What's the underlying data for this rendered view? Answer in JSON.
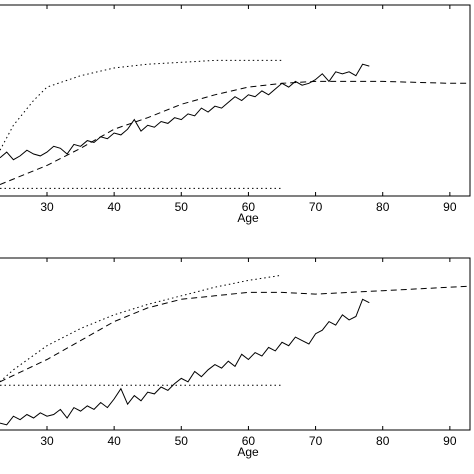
{
  "chart_data": [
    {
      "type": "line",
      "xlabel": "Age",
      "xlim": [
        23,
        93
      ],
      "xticks": [
        30,
        40,
        50,
        60,
        70,
        80,
        90
      ],
      "ylim": [
        0,
        100
      ],
      "series": [
        {
          "color": "#000",
          "linestyle": "dotted",
          "x": [
            23,
            25,
            28,
            30,
            35,
            40,
            45,
            50,
            55,
            60,
            65
          ],
          "values": [
            24,
            37,
            50,
            57,
            63,
            67,
            69,
            70,
            71,
            71,
            71
          ]
        },
        {
          "color": "#000",
          "linestyle": "dashed",
          "x": [
            23,
            30,
            35,
            40,
            45,
            50,
            55,
            60,
            65,
            70,
            80,
            90,
            95
          ],
          "values": [
            6,
            16,
            25,
            35,
            41,
            48,
            53,
            57,
            59,
            60,
            60,
            59,
            59
          ]
        },
        {
          "color": "#000",
          "linestyle": "dotted",
          "x": [
            23,
            65
          ],
          "values": [
            4,
            4
          ]
        },
        {
          "color": "#000",
          "linestyle": "solid",
          "x": [
            23,
            24,
            25,
            26,
            27,
            28,
            29,
            30,
            31,
            32,
            33,
            34,
            35,
            36,
            37,
            38,
            39,
            40,
            41,
            42,
            43,
            44,
            45,
            46,
            47,
            48,
            49,
            50,
            51,
            52,
            53,
            54,
            55,
            56,
            57,
            58,
            59,
            60,
            61,
            62,
            63,
            64,
            65,
            66,
            67,
            68,
            69,
            70,
            71,
            72,
            73,
            74,
            75,
            76,
            77,
            78
          ],
          "values": [
            20,
            23,
            19,
            21,
            24,
            22,
            21,
            23,
            26,
            25,
            22,
            27,
            26,
            29,
            28,
            31,
            30,
            33,
            32,
            35,
            40,
            34,
            37,
            36,
            39,
            38,
            41,
            40,
            43,
            42,
            46,
            44,
            47,
            46,
            49,
            52,
            50,
            53,
            52,
            55,
            53,
            56,
            59,
            57,
            60,
            58,
            59,
            61,
            64,
            60,
            65,
            64,
            65,
            63,
            69,
            68
          ]
        }
      ]
    },
    {
      "type": "line",
      "xlabel": "Age",
      "xlim": [
        23,
        93
      ],
      "xticks": [
        30,
        40,
        50,
        60,
        70,
        80,
        90
      ],
      "ylim": [
        0,
        100
      ],
      "series": [
        {
          "color": "#000",
          "linestyle": "dotted",
          "x": [
            23,
            25,
            30,
            35,
            40,
            45,
            50,
            55,
            60,
            65
          ],
          "values": [
            28,
            35,
            49,
            59,
            67,
            73,
            78,
            83,
            87,
            90
          ]
        },
        {
          "color": "#000",
          "linestyle": "dashed",
          "x": [
            23,
            30,
            35,
            40,
            45,
            50,
            55,
            60,
            65,
            70,
            80,
            90,
            95
          ],
          "values": [
            28,
            41,
            52,
            63,
            71,
            76,
            78,
            80,
            80,
            79,
            81,
            83,
            84
          ]
        },
        {
          "color": "#000",
          "linestyle": "dotted",
          "x": [
            23,
            65
          ],
          "values": [
            26,
            26
          ]
        },
        {
          "color": "#000",
          "linestyle": "solid",
          "x": [
            23,
            24,
            25,
            26,
            27,
            28,
            29,
            30,
            31,
            32,
            33,
            34,
            35,
            36,
            37,
            38,
            39,
            40,
            41,
            42,
            43,
            44,
            45,
            46,
            47,
            48,
            49,
            50,
            51,
            52,
            53,
            54,
            55,
            56,
            57,
            58,
            59,
            60,
            61,
            62,
            63,
            64,
            65,
            66,
            67,
            68,
            69,
            70,
            71,
            72,
            73,
            74,
            75,
            76,
            77,
            78
          ],
          "values": [
            4,
            3,
            8,
            6,
            9,
            7,
            10,
            8,
            9,
            12,
            7,
            13,
            11,
            14,
            12,
            16,
            13,
            18,
            24,
            15,
            20,
            17,
            22,
            21,
            25,
            23,
            27,
            30,
            28,
            34,
            31,
            35,
            38,
            36,
            40,
            37,
            44,
            41,
            45,
            43,
            48,
            46,
            51,
            49,
            54,
            52,
            50,
            56,
            58,
            63,
            61,
            67,
            64,
            66,
            76,
            74
          ]
        }
      ]
    }
  ]
}
